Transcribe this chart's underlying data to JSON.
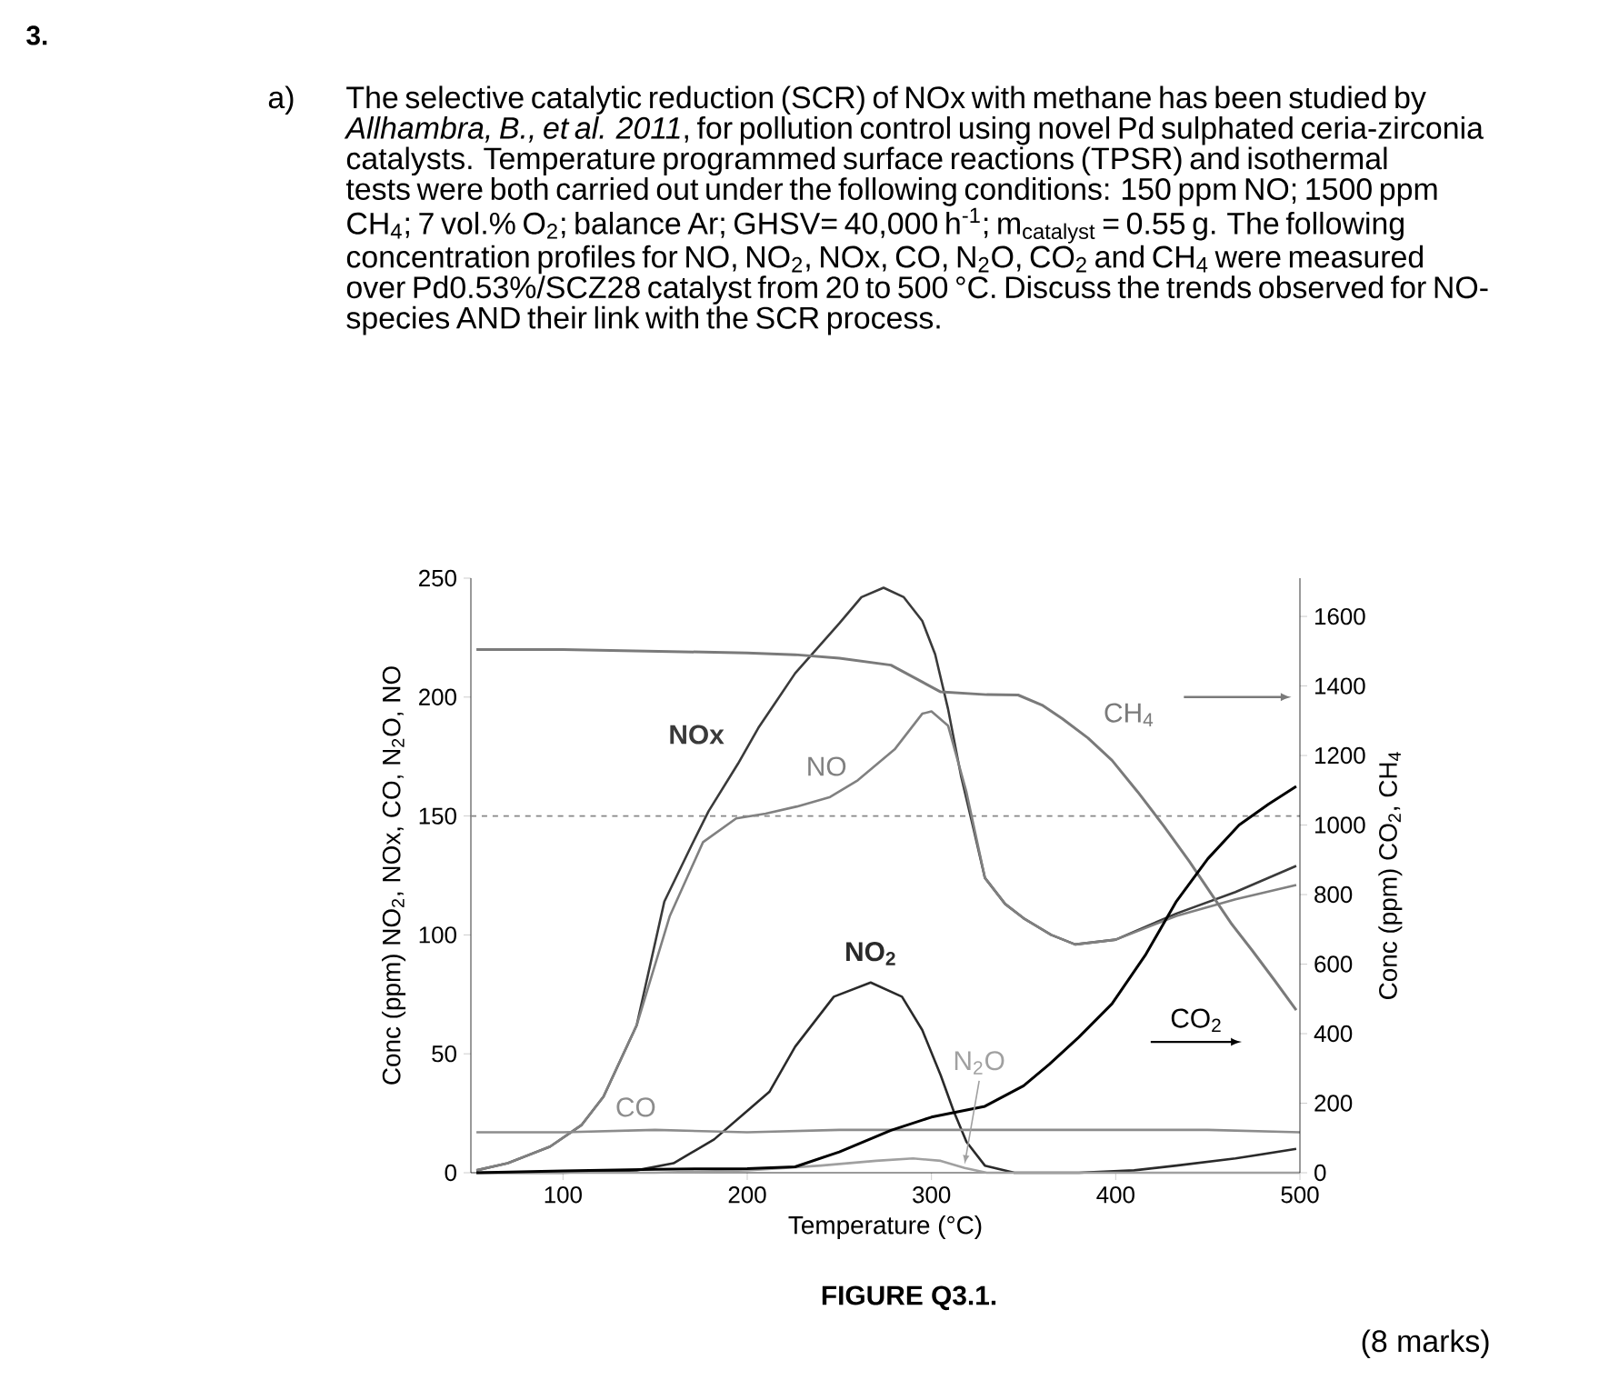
{
  "chart_data": {
    "type": "line",
    "xlabel": "Temperature (°C)",
    "ylabel": "Conc (ppm) NO$_{2}$, NOx, CO, N$_{2}$O, NO",
    "y2label": "Conc (ppm) CO$_{2}$, CH$_{4}$",
    "xlim": [
      50,
      500
    ],
    "xticks": [
      100,
      200,
      300,
      400,
      500
    ],
    "ylim": [
      0,
      250
    ],
    "yticks": [
      0,
      50,
      100,
      150,
      200,
      250
    ],
    "y2lim": [
      0,
      1710
    ],
    "y2ticks": [
      0,
      200,
      400,
      600,
      800,
      1000,
      1200,
      1400,
      1600
    ],
    "ref_lines": [
      {
        "axis": "y",
        "value": 150,
        "color": "#888888",
        "line_style": "dashed"
      }
    ],
    "annotations": [
      "3.",
      "a)",
      "The selective catalytic reduction (SCR) of NOx with methane has been studied by *Allhambra, B., et al. 2011*, for pollution control using novel Pd sulphated ceria-zirconia catalysts. Temperature programmed surface reactions (TPSR) and isothermal tests were both carried out under the following conditions: 150 ppm NO; 1500 ppm CH$_{4}$; 7 vol.% O$_{2}$; balance Ar; GHSV= 40,000 h$^{-1}$; m$_{catalyst}$ = 0.55 g. The following concentration profiles for NO, NO$_{2}$, NOx, CO, N$_{2}$O, CO$_{2}$ and CH$_{4}$ were measured over Pd0.53%/SCZ28 catalyst from 20 to 500 °C. Discuss the trends observed for NO-species AND their link with the SCR process.",
      "FIGURE Q3.1.",
      "(8 marks)"
    ],
    "series": [
      {
        "name": "NOx",
        "color": "#3a3a3a",
        "x": [
          53,
          70,
          93,
          110,
          122,
          140,
          155,
          170,
          179,
          195,
          206,
          226,
          250,
          262,
          274,
          285,
          295,
          302,
          309,
          316,
          323,
          329,
          340,
          350,
          365,
          378,
          400,
          433,
          465,
          498
        ],
        "values": [
          1,
          4,
          11,
          20,
          32,
          62,
          114,
          138,
          152,
          172,
          187,
          210,
          231,
          242,
          246,
          242,
          232,
          218,
          195,
          167,
          144,
          124,
          113,
          107,
          100,
          96,
          98,
          109,
          118,
          129
        ]
      },
      {
        "name": "NO",
        "color": "#808080",
        "x": [
          53,
          70,
          93,
          110,
          122,
          140,
          158,
          176,
          194,
          210,
          227,
          245,
          260,
          280,
          295,
          300,
          309,
          319,
          329,
          340,
          350,
          365,
          378,
          400,
          433,
          465,
          498
        ],
        "values": [
          1,
          4,
          11,
          20,
          32,
          62,
          108,
          139,
          149,
          151,
          154,
          158,
          165,
          178,
          193,
          194,
          188,
          160,
          124,
          113,
          107,
          100,
          96,
          98,
          108,
          115,
          121
        ]
      },
      {
        "name": "NO$_{2}$",
        "color": "#2a2a2a",
        "x": [
          53,
          100,
          140,
          160,
          182,
          200,
          212,
          226,
          247,
          267,
          284,
          295,
          305,
          312,
          319,
          329,
          345,
          380,
          410,
          433,
          465,
          498
        ],
        "values": [
          0,
          0,
          1,
          4,
          14,
          26,
          34,
          53,
          74,
          80,
          74,
          60,
          41,
          26,
          13,
          3,
          0,
          0,
          1,
          3,
          6,
          10
        ]
      },
      {
        "name": "N$_{2}$O",
        "color": "#a0a0a0",
        "x": [
          53,
          150,
          200,
          240,
          270,
          290,
          305,
          318,
          330,
          350,
          500
        ],
        "values": [
          0,
          0,
          1,
          3,
          5,
          6,
          5,
          2,
          0,
          0,
          0
        ]
      },
      {
        "name": "CO",
        "color": "#8c8c8c",
        "x": [
          53,
          100,
          150,
          200,
          250,
          300,
          350,
          400,
          450,
          500
        ],
        "values": [
          17,
          17,
          18,
          17,
          18,
          18,
          18,
          18,
          18,
          17
        ]
      },
      {
        "name": "CH$_{4}$",
        "color": "#7a7a7a",
        "axis": "y2",
        "x": [
          53,
          100,
          150,
          200,
          226,
          250,
          278,
          305,
          330,
          347,
          360,
          371,
          385,
          398,
          412,
          426,
          440,
          453,
          463,
          474,
          486,
          498
        ],
        "values": [
          1505,
          1505,
          1500,
          1495,
          1490,
          1480,
          1460,
          1383,
          1375,
          1374,
          1345,
          1306,
          1250,
          1186,
          1095,
          998,
          895,
          793,
          715,
          640,
          555,
          468
        ]
      },
      {
        "name": "CO$_{2}$",
        "color": "#000000",
        "axis": "y2",
        "x": [
          53,
          100,
          150,
          200,
          226,
          250,
          278,
          300,
          329,
          350,
          364,
          380,
          398,
          416,
          433,
          450,
          467,
          483,
          498
        ],
        "values": [
          0,
          5,
          10,
          12,
          17,
          60,
          122,
          160,
          191,
          250,
          312,
          390,
          486,
          625,
          781,
          903,
          1000,
          1060,
          1111
        ]
      }
    ]
  }
}
